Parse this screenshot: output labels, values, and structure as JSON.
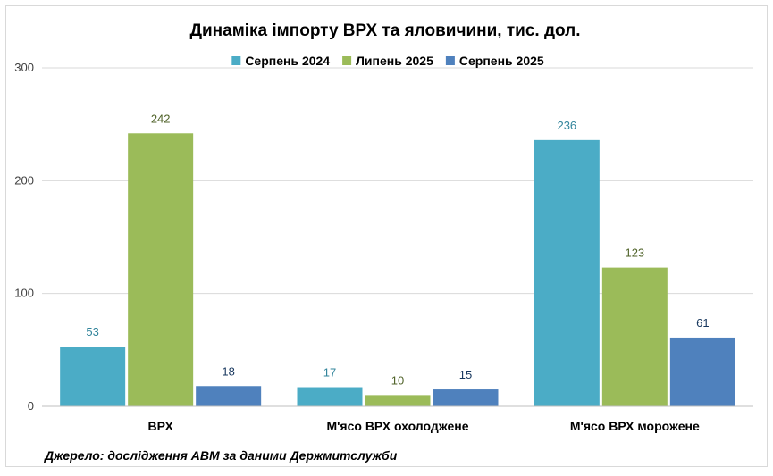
{
  "chart_data": {
    "type": "bar",
    "title": "Динаміка імпорту ВРХ та яловичини, тис. дол.",
    "categories": [
      "ВРХ",
      "М'ясо ВРХ охолоджене",
      "М'ясо ВРХ морожене"
    ],
    "series": [
      {
        "name": "Серпень 2024",
        "values": [
          53,
          17,
          236
        ],
        "color": "#4bacc6",
        "label_color": "#31849b"
      },
      {
        "name": "Липень 2025",
        "values": [
          242,
          10,
          123
        ],
        "color": "#9bbb59",
        "label_color": "#4f6228"
      },
      {
        "name": "Серпень 2025",
        "values": [
          18,
          15,
          61
        ],
        "color": "#4f81bd",
        "label_color": "#17375e"
      }
    ],
    "yticks": [
      "0",
      "100",
      "200",
      "300"
    ],
    "ylim": [
      0,
      300
    ],
    "grid": true,
    "legend": "top",
    "source": "Джерело: дослідження АВМ за даними Держмитслужби"
  }
}
